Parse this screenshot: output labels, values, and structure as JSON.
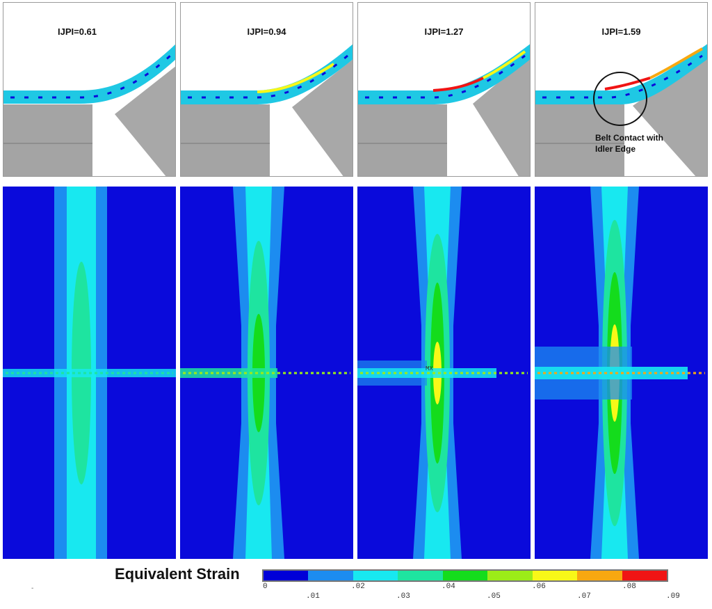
{
  "panels": [
    {
      "label": "IJPI=0.61"
    },
    {
      "label": "IJPI=0.94"
    },
    {
      "label": "IJPI=1.27"
    },
    {
      "label": "IJPI=1.59"
    }
  ],
  "annotation": {
    "line1": "Belt Contact with",
    "line2": "Idler Edge"
  },
  "mx_label": "MX",
  "legend": {
    "title": "Equivalent Strain",
    "ticks_upper": [
      "0",
      ".02",
      ".04",
      ".06",
      ".08"
    ],
    "ticks_lower": [
      ".01",
      ".03",
      ".05",
      ".07",
      ".09"
    ],
    "colors": [
      "#0000d8",
      "#1c8cf0",
      "#18e8f0",
      "#1ee4a0",
      "#14dc1c",
      "#9cec18",
      "#f8f818",
      "#f8a810",
      "#f01414"
    ]
  },
  "colors": {
    "background": "#0a0adb",
    "idler": "#a8a8a8",
    "belt": "#18c8e0",
    "hot": "#f01414"
  },
  "dash_mark": "-"
}
